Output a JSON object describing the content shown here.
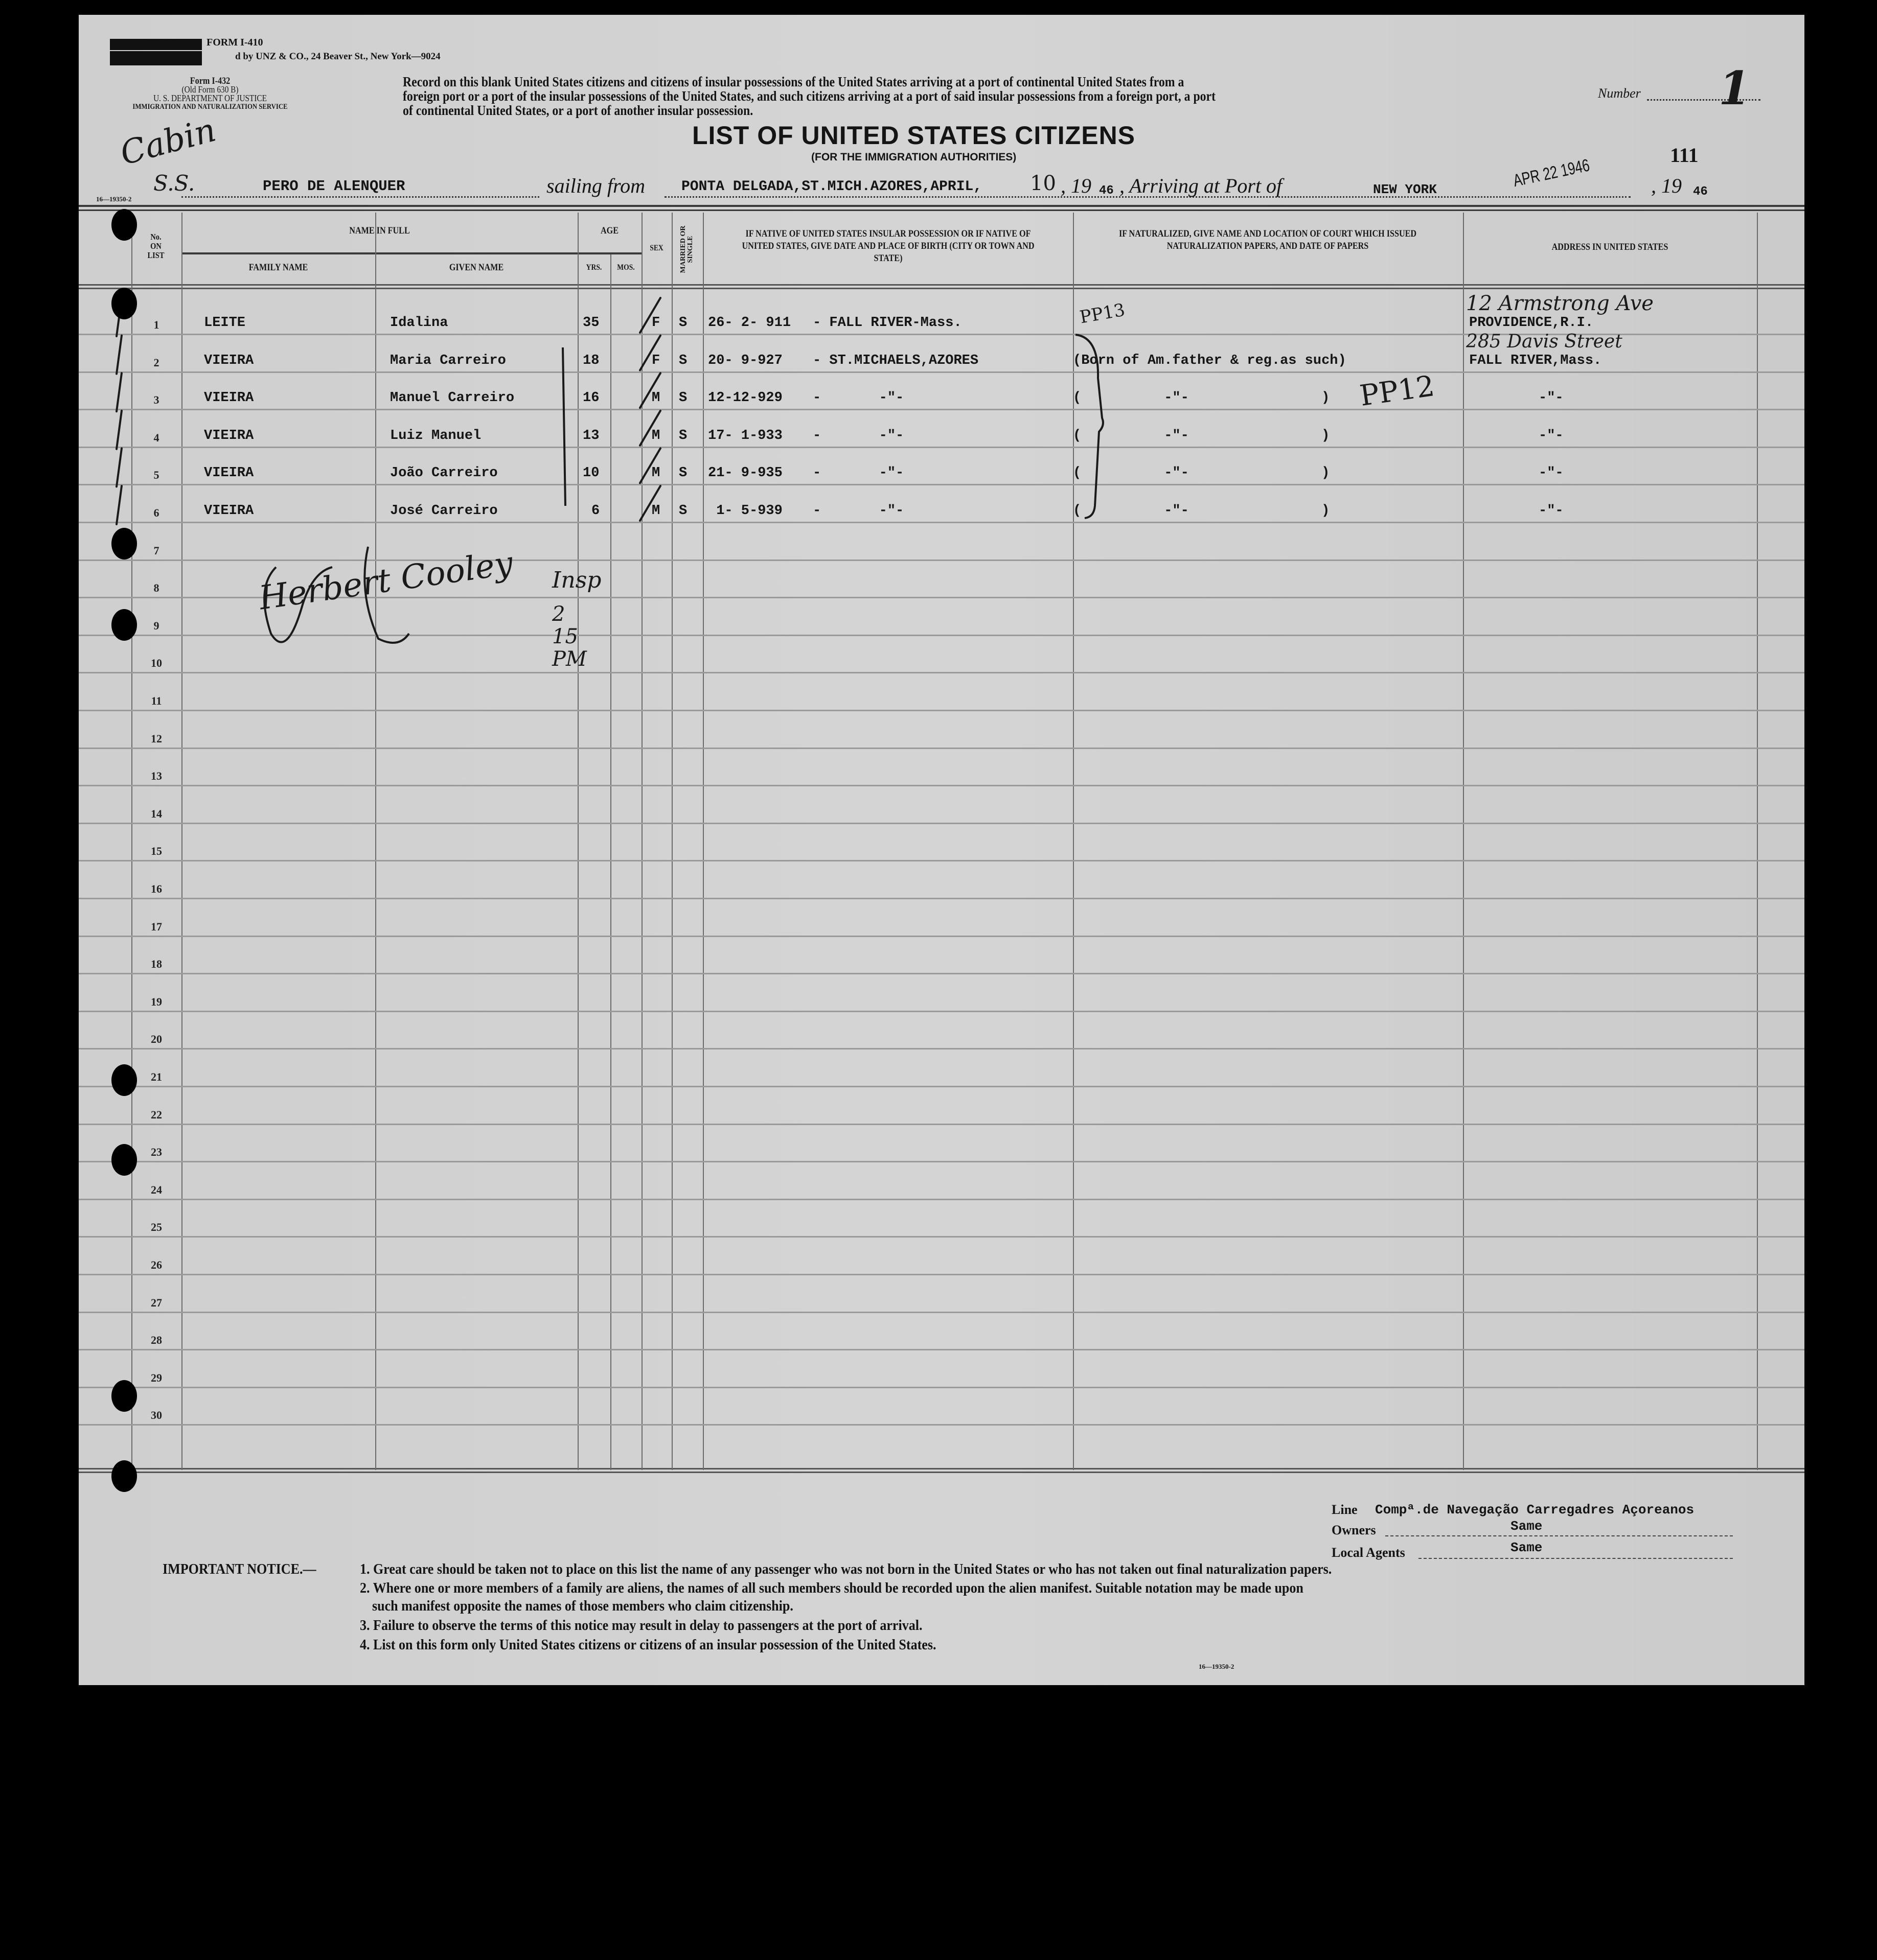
{
  "form_header": {
    "form_number": "FORM I-410",
    "printer_line": "d by UNZ & CO., 24 Beaver St., New York—9024",
    "old_form_block": [
      "Form I-432",
      "(Old Form 630 B)",
      "U. S. DEPARTMENT OF JUSTICE",
      "IMMIGRATION AND NATURALIZATION SERVICE"
    ],
    "instructions": [
      "Record on this blank United States citizens and citizens of insular possessions of the United States arriving at a port of continental United States from a",
      "foreign port or a port of the insular possessions of the United States, and such citizens arriving at a port of said insular possessions from a foreign port, a port",
      "of continental United States, or a port of another insular possession."
    ],
    "number_label": "Number",
    "number_value": "1",
    "title": "LIST OF UNITED STATES CITIZENS",
    "subtitle": "(FOR THE IMMIGRATION AUTHORITIES)",
    "page_number": "111",
    "class_handwritten": "Cabin",
    "print_code": "16—19350-2"
  },
  "voyage": {
    "ss_label": "S.S.",
    "ship": "PERO DE ALENQUER",
    "sailing_from_label": "sailing from",
    "port_from": "PONTA DELGADA,ST.MICH.AZORES,APRIL,",
    "day": "10",
    "year_prefix": ", 19",
    "year": "46",
    "arriving_label": ", Arriving at Port of",
    "port_to": "NEW YORK",
    "arrival_stamp": "APR 22 1946",
    "arrival_year_prefix": ", 19",
    "arrival_year": "46"
  },
  "table_headers": {
    "no_on_list": "No. ON LIST",
    "name_in_full": "NAME IN FULL",
    "family_name": "FAMILY NAME",
    "given_name": "GIVEN NAME",
    "age": "AGE",
    "yrs": "YRS.",
    "mos": "MOS.",
    "sex": "SEX",
    "married_or_single": "MARRIED OR SINGLE",
    "birth": "IF NATIVE OF UNITED STATES INSULAR POSSESSION OR IF NATIVE OF UNITED STATES, GIVE DATE AND PLACE OF BIRTH (CITY OR TOWN AND STATE)",
    "naturalized": "IF NATURALIZED, GIVE NAME AND LOCATION OF COURT WHICH ISSUED NATURALIZATION PAPERS, AND DATE OF PAPERS",
    "address": "ADDRESS IN UNITED STATES"
  },
  "list_numbers": [
    "1",
    "2",
    "3",
    "4",
    "5",
    "6",
    "7",
    "8",
    "9",
    "10",
    "11",
    "12",
    "13",
    "14",
    "15",
    "16",
    "17",
    "18",
    "19",
    "20",
    "21",
    "22",
    "23",
    "24",
    "25",
    "26",
    "27",
    "28",
    "29",
    "30"
  ],
  "passengers": [
    {
      "family": "LEITE",
      "given": "Idalina",
      "yrs": "35",
      "sex": "F",
      "status": "S",
      "birth_date": "26- 2- 911",
      "birth_place": "- FALL RIVER-Mass.",
      "naturalization": "",
      "address": "PROVIDENCE,R.I."
    },
    {
      "family": "VIEIRA",
      "given": "Maria Carreiro",
      "yrs": "18",
      "sex": "F",
      "status": "S",
      "birth_date": "20- 9-927",
      "birth_place": "- ST.MICHAELS,AZORES",
      "naturalization": "(Born of Am.father & reg.as such)",
      "address": "FALL RIVER,Mass."
    },
    {
      "family": "VIEIRA",
      "given": "Manuel Carreiro",
      "yrs": "16",
      "sex": "M",
      "status": "S",
      "birth_date": "12-12-929",
      "birth_place": "-       -\"-",
      "naturalization": "(          -\"-                )",
      "address": "-\"-"
    },
    {
      "family": "VIEIRA",
      "given": "Luiz Manuel",
      "yrs": "13",
      "sex": "M",
      "status": "S",
      "birth_date": "17- 1-933",
      "birth_place": "-       -\"-",
      "naturalization": "(          -\"-                )",
      "address": "-\"-"
    },
    {
      "family": "VIEIRA",
      "given": "João Carreiro",
      "yrs": "10",
      "sex": "M",
      "status": "S",
      "birth_date": "21- 9-935",
      "birth_place": "-       -\"-",
      "naturalization": "(          -\"-                )",
      "address": "-\"-"
    },
    {
      "family": "VIEIRA",
      "given": "José Carreiro",
      "yrs": "6",
      "sex": "M",
      "status": "S",
      "birth_date": " 1- 5-939",
      "birth_place": "-       -\"-",
      "naturalization": "(          -\"-                )",
      "address": "-\"-"
    }
  ],
  "handwritten": {
    "pp13": "PP13",
    "pp12": "PP12",
    "address_1": "12 Armstrong Ave",
    "address_2": "285 Davis Street",
    "signature": "Herbert Cooley",
    "signature_title": "Insp",
    "time": "2 15 PM"
  },
  "footer": {
    "line_label": "Line",
    "line_value": "Compª.de Navegação Carregadres Açoreanos",
    "owners_label": "Owners",
    "owners_value": "Same",
    "agents_label": "Local Agents",
    "agents_value": "Same",
    "notice_label": "IMPORTANT NOTICE.—",
    "notices": [
      "1. Great care should be taken not to place on this list the name of any passenger who was not born in the United States or who has not taken out final naturalization papers.",
      "2. Where one or more members of a family are aliens, the names of all such members should be recorded upon the alien manifest. Suitable notation may be made upon",
      "such manifest opposite the names of those members who claim citizenship.",
      "3. Failure to observe the terms of this notice may result in delay to passengers at the port of arrival.",
      "4. List on this form only United States citizens or citizens of an insular possession of the United States."
    ],
    "print_code": "16—19350-2"
  },
  "colors": {
    "paper": "#d3d3d3",
    "ink": "#141414",
    "background": "#000000"
  }
}
